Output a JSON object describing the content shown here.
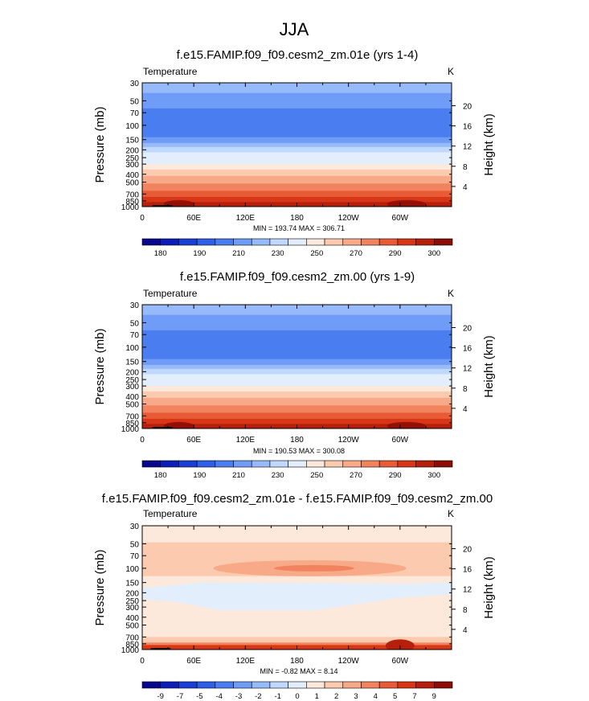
{
  "page_title": "JJA",
  "colors": {
    "temp_scale": [
      "#08088c",
      "#0b1fb8",
      "#1a3fd6",
      "#2f5fe6",
      "#4a7ef0",
      "#6f9cf6",
      "#97bbfa",
      "#c0d8fd",
      "#e3eefc",
      "#fde8dc",
      "#fccaae",
      "#f8a987",
      "#f1845f",
      "#e85b36",
      "#d83717",
      "#b51f0b",
      "#8c0d05"
    ],
    "diff_scale": [
      "#08088c",
      "#0b1fb8",
      "#1a3fd6",
      "#2f5fe6",
      "#4a7ef0",
      "#6f9cf6",
      "#97bbfa",
      "#c0d8fd",
      "#e3eefc",
      "#fde8dc",
      "#fccaae",
      "#f8a987",
      "#f1845f",
      "#e85b36",
      "#d83717",
      "#b51f0b",
      "#8c0d05"
    ]
  },
  "axis": {
    "pressure_label": "Pressure (mb)",
    "height_label": "Height (km)",
    "pressure_ticks": [
      "30",
      "50",
      "70",
      "100",
      "150",
      "200",
      "250",
      "300",
      "400",
      "500",
      "700",
      "850",
      "1000"
    ],
    "pressure_values": [
      30,
      50,
      70,
      100,
      150,
      200,
      250,
      300,
      400,
      500,
      700,
      850,
      1000
    ],
    "height_ticks": [
      "20",
      "16",
      "12",
      "8",
      "4"
    ],
    "height_values": [
      20,
      16,
      12,
      8,
      4
    ],
    "lon_ticks": [
      "0",
      "60E",
      "120E",
      "180",
      "120W",
      "60W"
    ],
    "lon_values": [
      0,
      60,
      120,
      180,
      240,
      300
    ]
  },
  "chart_data": [
    {
      "type": "heatmap",
      "title": "f.e15.FAMIP.f09_f09.cesm2_zm.01e (yrs 1-4)",
      "variable_label": "Temperature",
      "units": "K",
      "stats": "MIN = 193.74  MAX = 306.71",
      "xlim": [
        0,
        360
      ],
      "ylim": [
        1000,
        30
      ],
      "colorbar_labels": [
        "180",
        "190",
        "210",
        "230",
        "250",
        "270",
        "290",
        "300"
      ]
    },
    {
      "type": "heatmap",
      "title": "f.e15.FAMIP.f09_f09.cesm2_zm.00 (yrs 1-9)",
      "variable_label": "Temperature",
      "units": "K",
      "stats": "MIN = 190.53  MAX = 300.08",
      "xlim": [
        0,
        360
      ],
      "ylim": [
        1000,
        30
      ],
      "colorbar_labels": [
        "180",
        "190",
        "210",
        "230",
        "250",
        "270",
        "290",
        "300"
      ]
    },
    {
      "type": "heatmap",
      "title": "f.e15.FAMIP.f09_f09.cesm2_zm.01e - f.e15.FAMIP.f09_f09.cesm2_zm.00",
      "variable_label": "Temperature",
      "units": "K",
      "stats": "MIN = -0.82  MAX = 8.14",
      "xlim": [
        0,
        360
      ],
      "ylim": [
        1000,
        30
      ],
      "colorbar_labels": [
        "-9",
        "-7",
        "-5",
        "-4",
        "-3",
        "-2",
        "-1",
        "0",
        "1",
        "2",
        "3",
        "4",
        "5",
        "7",
        "9"
      ]
    }
  ]
}
